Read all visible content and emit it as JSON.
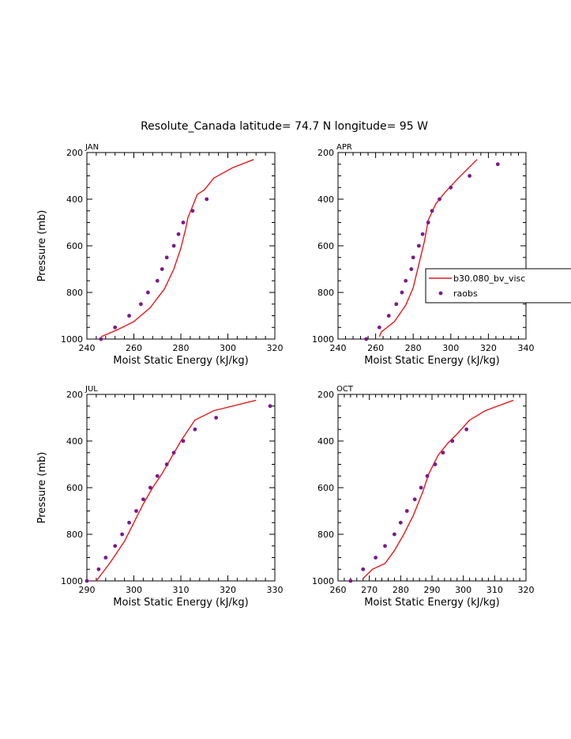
{
  "chart_data": {
    "type": "line",
    "title": "Resolute_Canada  latitude= 74.7 N longitude= 95 W",
    "legend": {
      "placement": "right-of-top-right-panel",
      "entries": [
        {
          "label": "b30.080_bv_visc",
          "style": "line",
          "color": "#e8181b"
        },
        {
          "label": "raobs",
          "style": "marker",
          "color": "#7a1a8c"
        }
      ]
    },
    "colors": {
      "model": "#e8181b",
      "obs": "#7a1a8c"
    },
    "panels": [
      {
        "label": "JAN",
        "xlabel": "Moist Static Energy (kJ/kg)",
        "ylabel": "Pressure (mb)",
        "xlim": [
          240,
          320
        ],
        "xticks": [
          240,
          260,
          280,
          300,
          320
        ],
        "ylim": [
          1000,
          200
        ],
        "yticks": [
          200,
          400,
          600,
          800,
          1000
        ],
        "series": [
          {
            "name": "b30.080_bv_visc",
            "kind": "line",
            "x": [
              246,
              253,
              260,
              267,
              273,
              277,
              280,
              282,
              283,
              285,
              287,
              290,
              294,
              302,
              311
            ],
            "y": [
              990,
              960,
              925,
              865,
              785,
              700,
              610,
              530,
              480,
              430,
              380,
              360,
              310,
              265,
              230
            ]
          },
          {
            "name": "raobs",
            "kind": "scatter",
            "x": [
              246,
              252,
              258,
              263,
              266,
              270,
              272,
              274,
              277,
              279,
              281,
              285,
              291
            ],
            "y": [
              1000,
              950,
              900,
              850,
              800,
              750,
              700,
              650,
              600,
              550,
              500,
              450,
              400
            ]
          }
        ]
      },
      {
        "label": "APR",
        "xlabel": "Moist Static Energy (kJ/kg)",
        "ylabel": "",
        "xlim": [
          240,
          340
        ],
        "xticks": [
          240,
          260,
          280,
          300,
          320,
          340
        ],
        "ylim": [
          1000,
          200
        ],
        "yticks": [
          200,
          400,
          600,
          800,
          1000
        ],
        "series": [
          {
            "name": "b30.080_bv_visc",
            "kind": "line",
            "x": [
              262,
              263,
              270,
              276,
              280,
              283,
              286,
              288,
              292,
              297,
              304,
              314
            ],
            "y": [
              990,
              970,
              925,
              855,
              780,
              680,
              580,
              490,
              420,
              370,
              310,
              230
            ]
          },
          {
            "name": "raobs",
            "kind": "scatter",
            "x": [
              255,
              262,
              267,
              271,
              274,
              276,
              279,
              280,
              283,
              285,
              288,
              290,
              294,
              300,
              310,
              325
            ],
            "y": [
              1000,
              950,
              900,
              850,
              800,
              750,
              700,
              650,
              600,
              550,
              500,
              450,
              400,
              350,
              300,
              250
            ]
          }
        ]
      },
      {
        "label": "JUL",
        "xlabel": "Moist Static Energy (kJ/kg)",
        "ylabel": "Pressure (mb)",
        "xlim": [
          290,
          330
        ],
        "xticks": [
          290,
          300,
          310,
          320,
          330
        ],
        "ylim": [
          1000,
          200
        ],
        "yticks": [
          200,
          400,
          600,
          800,
          1000
        ],
        "series": [
          {
            "name": "b30.080_bv_visc",
            "kind": "line",
            "x": [
              292,
              295,
              298,
              300,
              302,
              304,
              306,
              308,
              310,
              311,
              313,
              317,
              326
            ],
            "y": [
              1000,
              920,
              830,
              750,
              670,
              600,
              540,
              470,
              400,
              370,
              310,
              270,
              225
            ]
          },
          {
            "name": "raobs",
            "kind": "scatter",
            "x": [
              290,
              292.5,
              294,
              296,
              297.5,
              299,
              300.5,
              302,
              303.5,
              305,
              307,
              308.5,
              310.5,
              313,
              317.5,
              329
            ],
            "y": [
              1000,
              950,
              900,
              850,
              800,
              750,
              700,
              650,
              600,
              550,
              500,
              450,
              400,
              350,
              300,
              250
            ]
          }
        ]
      },
      {
        "label": "OCT",
        "xlabel": "Moist Static Energy (kJ/kg)",
        "ylabel": "",
        "xlim": [
          260,
          320
        ],
        "xticks": [
          260,
          270,
          280,
          290,
          300,
          310,
          320
        ],
        "ylim": [
          1000,
          200
        ],
        "yticks": [
          200,
          400,
          600,
          800,
          1000
        ],
        "series": [
          {
            "name": "b30.080_bv_visc",
            "kind": "line",
            "x": [
              268,
              271,
              275,
              278,
              281,
              284,
              287,
              289,
              292,
              295,
              298,
              302,
              307,
              316
            ],
            "y": [
              990,
              950,
              925,
              870,
              800,
              720,
              620,
              540,
              460,
              410,
              370,
              310,
              270,
              225
            ]
          },
          {
            "name": "raobs",
            "kind": "scatter",
            "x": [
              264,
              268,
              272,
              275,
              278,
              280,
              282,
              284.5,
              286.5,
              288.5,
              291,
              293.5,
              296.5,
              301
            ],
            "y": [
              1000,
              950,
              900,
              850,
              800,
              750,
              700,
              650,
              600,
              550,
              500,
              450,
              400,
              350
            ]
          }
        ]
      }
    ]
  }
}
